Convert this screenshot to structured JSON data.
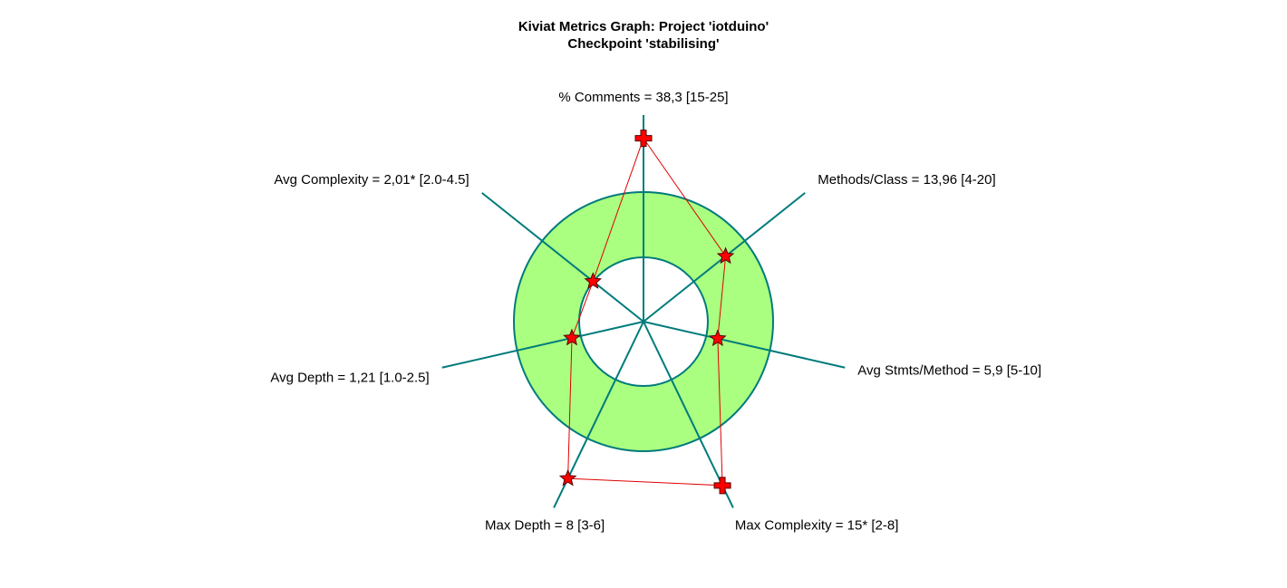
{
  "chart_data": {
    "type": "radar",
    "title": "Kiviat Metrics Graph: Project 'iotduino'",
    "subtitle": "Checkpoint 'stabilising'",
    "colors": {
      "band_fill": "#aaff80",
      "axis": "#007b7b",
      "band_stroke": "#007b7b",
      "series_line": "#e00000",
      "marker_fill": "#ff0000",
      "marker_stroke": "#550000"
    },
    "axes": [
      {
        "label": "% Comments = 38,3 [15-25]",
        "metric": "% Comments",
        "value": 38.3,
        "min": 15,
        "max": 25,
        "marker": "cross"
      },
      {
        "label": "Methods/Class = 13,96 [4-20]",
        "metric": "Methods/Class",
        "value": 13.96,
        "min": 4,
        "max": 20,
        "marker": "star"
      },
      {
        "label": "Avg Stmts/Method = 5,9 [5-10]",
        "metric": "Avg Stmts/Method",
        "value": 5.9,
        "min": 5,
        "max": 10,
        "marker": "star"
      },
      {
        "label": "Max Complexity = 15* [2-8]",
        "metric": "Max Complexity",
        "value": 15,
        "min": 2,
        "max": 8,
        "marker": "cross"
      },
      {
        "label": "Max Depth = 8 [3-6]",
        "metric": "Max Depth",
        "value": 8,
        "min": 3,
        "max": 6,
        "marker": "star"
      },
      {
        "label": "Avg Depth = 1,21 [1.0-2.5]",
        "metric": "Avg Depth",
        "value": 1.21,
        "min": 1.0,
        "max": 2.5,
        "marker": "star"
      },
      {
        "label": "Avg Complexity = 2,01* [2.0-4.5]",
        "metric": "Avg Complexity",
        "value": 2.01,
        "min": 2.0,
        "max": 4.5,
        "marker": "star"
      }
    ]
  }
}
